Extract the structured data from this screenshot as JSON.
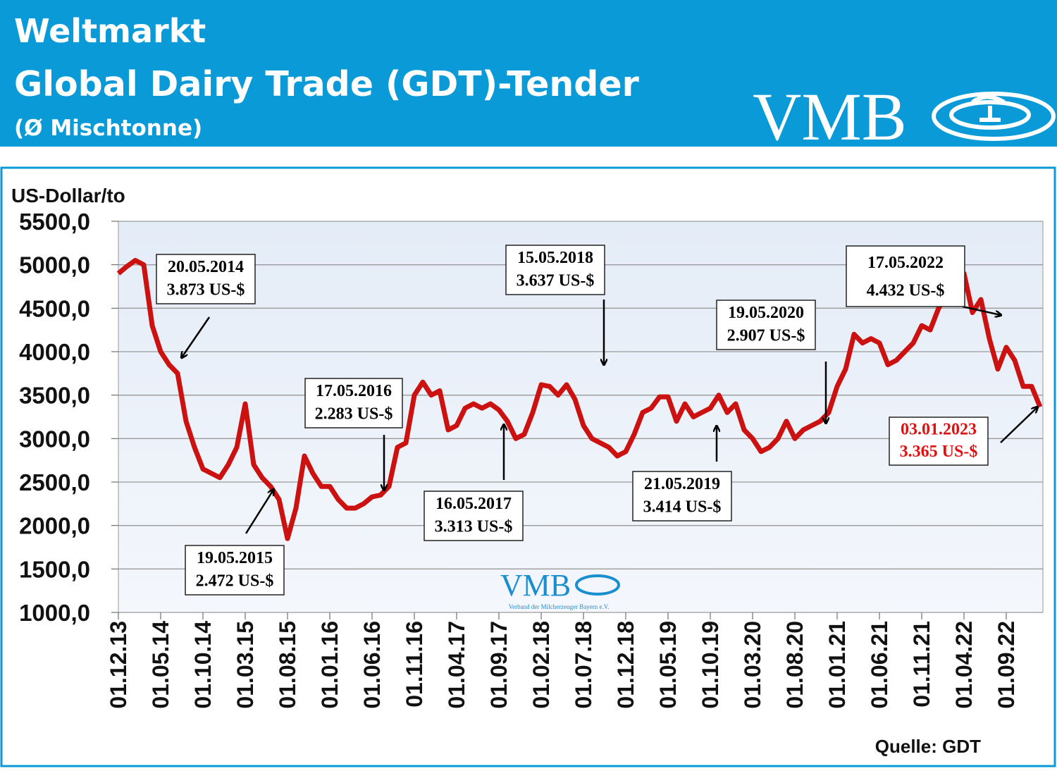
{
  "header": {
    "title": "Weltmarkt",
    "subtitle": "Global Dairy Trade (GDT)-Tender",
    "note": "(Ø Mischtonne)",
    "logo": "VMB"
  },
  "chart_data": {
    "type": "line",
    "y_label": "US-Dollar/to",
    "color": "#cc1111",
    "grid": true,
    "ylim": [
      1000,
      5500
    ],
    "yticks": [
      {
        "value": 1000,
        "label": "1000,0"
      },
      {
        "value": 1500,
        "label": "1500,0"
      },
      {
        "value": 2000,
        "label": "2000,0"
      },
      {
        "value": 2500,
        "label": "2500,0"
      },
      {
        "value": 3000,
        "label": "3000,0"
      },
      {
        "value": 3500,
        "label": "3500,0"
      },
      {
        "value": 4000,
        "label": "4000,0"
      },
      {
        "value": 4500,
        "label": "4500,0"
      },
      {
        "value": 5000,
        "label": "5000,0"
      },
      {
        "value": 5500,
        "label": "5500,0"
      }
    ],
    "categories": [
      "01.12.13",
      null,
      null,
      null,
      null,
      "01.05.14",
      null,
      null,
      null,
      null,
      "01.10.14",
      null,
      null,
      null,
      null,
      "01.03.15",
      null,
      null,
      null,
      null,
      "01.08.15",
      null,
      null,
      null,
      null,
      "01.01.16",
      null,
      null,
      null,
      null,
      "01.06.16",
      null,
      null,
      null,
      null,
      "01.11.16",
      null,
      null,
      null,
      null,
      "01.04.17",
      null,
      null,
      null,
      null,
      "01.09.17",
      null,
      null,
      null,
      null,
      "01.02.18",
      null,
      null,
      null,
      null,
      "01.07.18",
      null,
      null,
      null,
      null,
      "01.12.18",
      null,
      null,
      null,
      null,
      "01.05.19",
      null,
      null,
      null,
      null,
      "01.10.19",
      null,
      null,
      null,
      null,
      "01.03.20",
      null,
      null,
      null,
      null,
      "01.08.20",
      null,
      null,
      null,
      null,
      "01.01.21",
      null,
      null,
      null,
      null,
      "01.06.21",
      null,
      null,
      null,
      null,
      "01.11.21",
      null,
      null,
      null,
      null,
      "01.04.22",
      null,
      null,
      null,
      null,
      "01.09.22",
      null,
      null,
      null,
      null
    ],
    "values": [
      4900,
      4980,
      5050,
      5000,
      4300,
      4000,
      3850,
      3750,
      3200,
      2900,
      2650,
      2600,
      2550,
      2700,
      2900,
      3400,
      2700,
      2550,
      2450,
      2300,
      1850,
      2200,
      2800,
      2600,
      2450,
      2450,
      2300,
      2200,
      2200,
      2250,
      2330,
      2350,
      2450,
      2900,
      2950,
      3500,
      3650,
      3500,
      3550,
      3100,
      3150,
      3350,
      3400,
      3350,
      3400,
      3330,
      3200,
      3000,
      3050,
      3300,
      3620,
      3600,
      3500,
      3620,
      3450,
      3150,
      3000,
      2950,
      2900,
      2800,
      2850,
      3050,
      3300,
      3350,
      3480,
      3480,
      3200,
      3400,
      3250,
      3300,
      3350,
      3500,
      3300,
      3400,
      3100,
      3000,
      2850,
      2900,
      3000,
      3200,
      3000,
      3100,
      3150,
      3200,
      3300,
      3600,
      3800,
      4200,
      4100,
      4150,
      4100,
      3850,
      3900,
      4000,
      4100,
      4300,
      4250,
      4500,
      4650,
      4800,
      4900,
      4450,
      4600,
      4150,
      3800,
      4050,
      3900,
      3600,
      3600,
      3365
    ],
    "annotations": [
      {
        "lines": [
          "20.05.2014",
          "3.873 US-$"
        ],
        "color": "#000000"
      },
      {
        "lines": [
          "19.05.2015",
          "2.472 US-$"
        ],
        "color": "#000000"
      },
      {
        "lines": [
          "17.05.2016",
          "2.283 US-$"
        ],
        "color": "#000000"
      },
      {
        "lines": [
          "16.05.2017",
          "3.313 US-$"
        ],
        "color": "#000000"
      },
      {
        "lines": [
          "15.05.2018",
          "3.637 US-$"
        ],
        "color": "#000000"
      },
      {
        "lines": [
          "21.05.2019",
          "3.414 US-$"
        ],
        "color": "#000000"
      },
      {
        "lines": [
          "19.05.2020",
          "2.907 US-$"
        ],
        "color": "#000000"
      },
      {
        "lines": [
          "17.05.2022",
          "4.432 US-$"
        ],
        "color": "#000000"
      },
      {
        "lines": [
          "03.01.2023",
          "3.365 US-$"
        ],
        "color": "#e01010"
      }
    ],
    "watermark": {
      "logo": "VMB",
      "text": "Verband der Milcherzeuger Bayern e.V."
    },
    "source": "Quelle: GDT"
  }
}
